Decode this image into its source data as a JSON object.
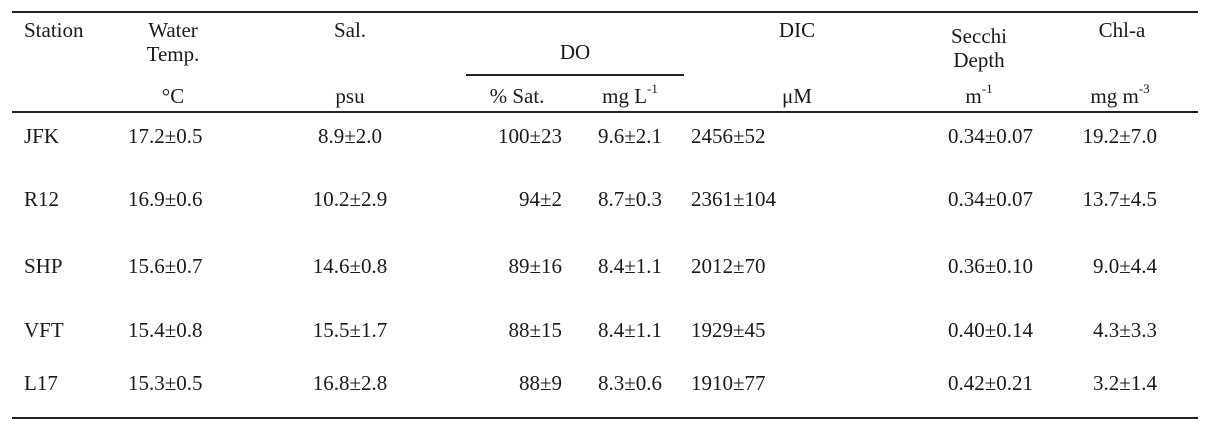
{
  "headers": {
    "station": "Station",
    "water_temp_line1": "Water",
    "water_temp_line2": "Temp.",
    "sal": "Sal.",
    "do": "DO",
    "dic": "DIC",
    "secchi_line1": "Secchi",
    "secchi_line2": "Depth",
    "chla": "Chl-a"
  },
  "units": {
    "water_temp": "°C",
    "sal": "psu",
    "do_sat": "% Sat.",
    "do_mg_base": "mg L",
    "do_mg_sup": "-1",
    "dic": "μM",
    "secchi_base": "m",
    "secchi_sup": "-1",
    "chla_base": "mg m",
    "chla_sup": "-3"
  },
  "rows": [
    {
      "station": "JFK",
      "temp": "17.2±0.5",
      "sal": "8.9±2.0",
      "do_sat": "100±23",
      "do_mg": "9.6±2.1",
      "dic": "2456±52",
      "secchi": "0.34±0.07",
      "chla": "19.2±7.0"
    },
    {
      "station": "R12",
      "temp": "16.9±0.6",
      "sal": "10.2±2.9",
      "do_sat": "94±2",
      "do_mg": "8.7±0.3",
      "dic": "2361±104",
      "secchi": "0.34±0.07",
      "chla": "13.7±4.5"
    },
    {
      "station": "SHP",
      "temp": "15.6±0.7",
      "sal": "14.6±0.8",
      "do_sat": "89±16",
      "do_mg": "8.4±1.1",
      "dic": "2012±70",
      "secchi": "0.36±0.10",
      "chla": "9.0±4.4"
    },
    {
      "station": "VFT",
      "temp": "15.4±0.8",
      "sal": "15.5±1.7",
      "do_sat": "88±15",
      "do_mg": "8.4±1.1",
      "dic": "1929±45",
      "secchi": "0.40±0.14",
      "chla": "4.3±3.3"
    },
    {
      "station": "L17",
      "temp": "15.3±0.5",
      "sal": "16.8±2.8",
      "do_sat": "88±9",
      "do_mg": "8.3±0.6",
      "dic": "1910±77",
      "secchi": "0.42±0.21",
      "chla": "3.2±1.4"
    }
  ]
}
